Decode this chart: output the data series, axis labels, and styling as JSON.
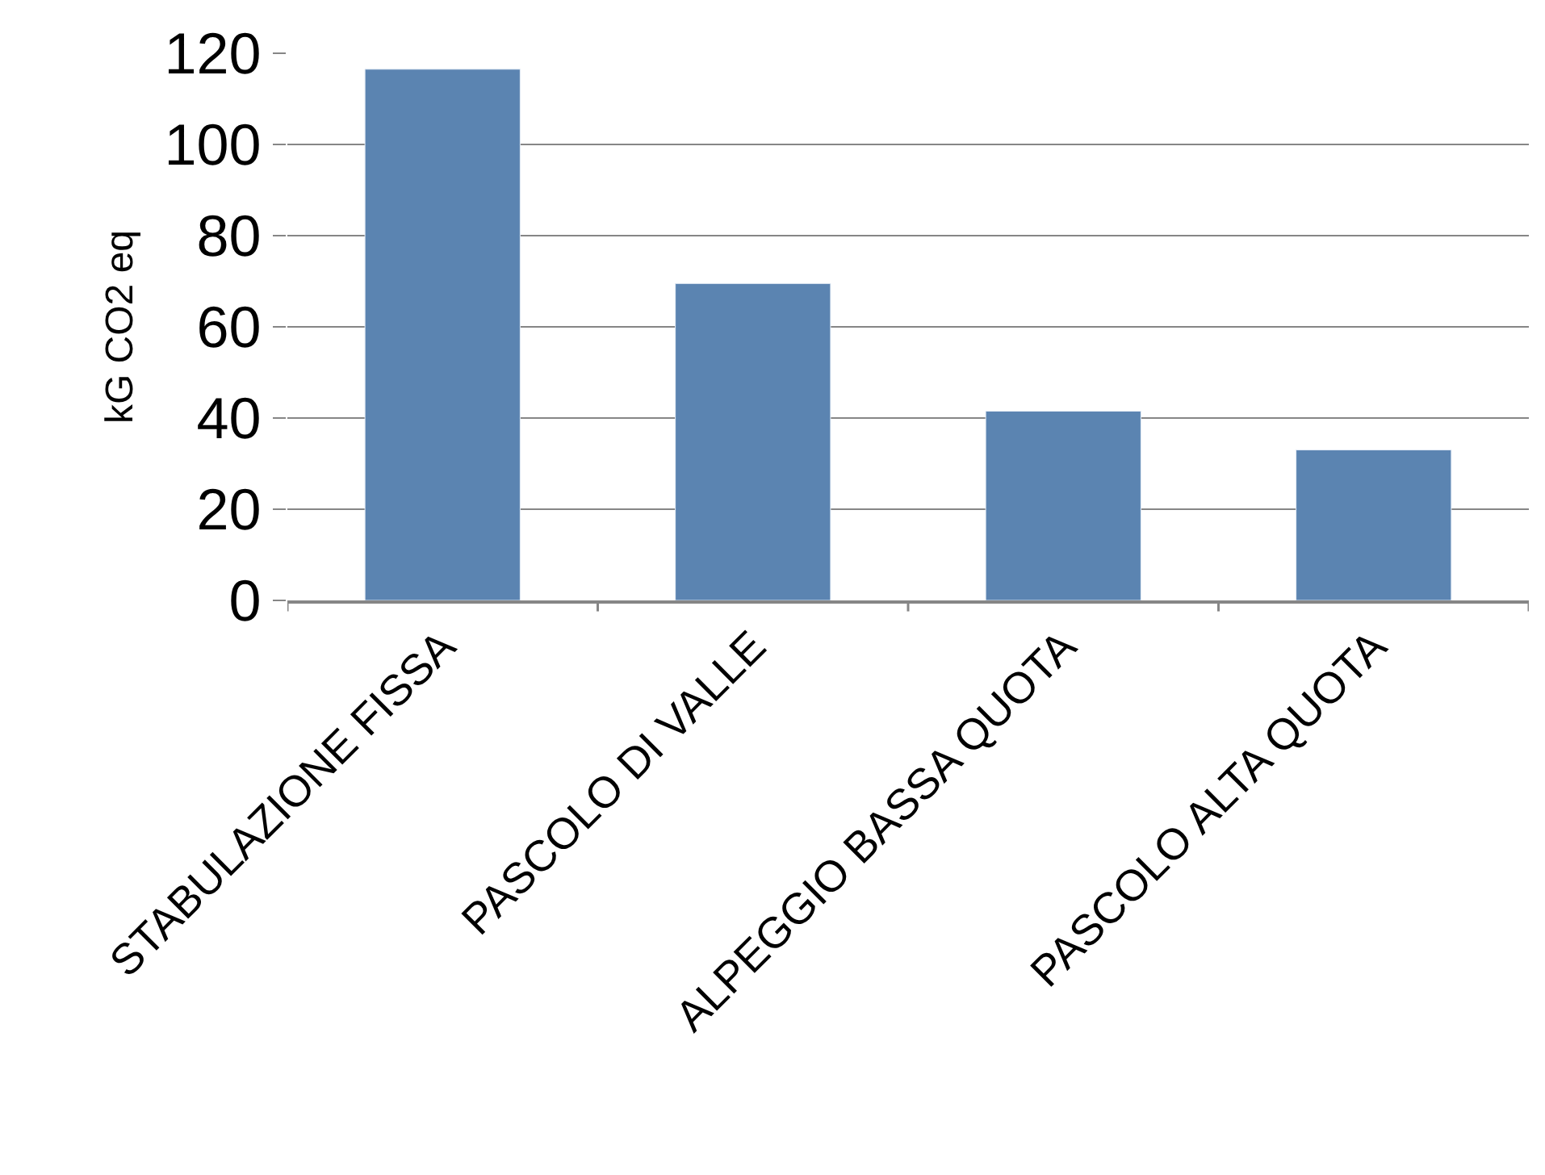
{
  "chart_data": {
    "type": "bar",
    "ylabel": "kG CO2 eq",
    "categories": [
      "STABULAZIONE FISSA",
      "PASCOLO DI VALLE",
      "ALPEGGIO BASSA QUOTA",
      "PASCOLO ALTA QUOTA"
    ],
    "values": [
      116.5,
      69.5,
      41.5,
      33
    ],
    "color": "#5b84b1",
    "ylim": [
      0,
      120
    ],
    "yticks": [
      0,
      20,
      40,
      60,
      80,
      100,
      120
    ],
    "grid": "y"
  }
}
